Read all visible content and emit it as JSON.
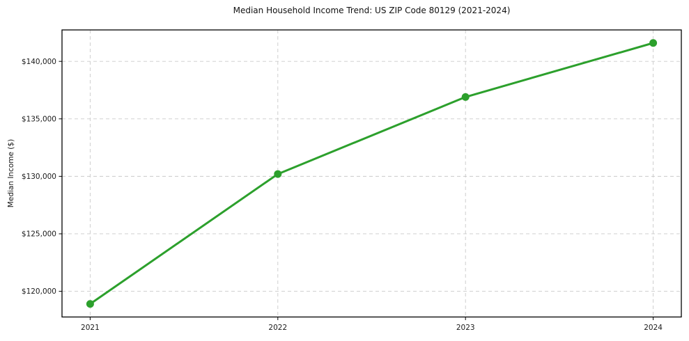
{
  "chart": {
    "title": "Median Household Income Trend: US ZIP Code 80129 (2021-2024)",
    "y_axis_label": "Median Income ($)"
  },
  "chart_data": {
    "type": "line",
    "title": "Median Household Income Trend: US ZIP Code 80129 (2021-2024)",
    "xlabel": "",
    "ylabel": "Median Income ($)",
    "x": [
      2021,
      2022,
      2023,
      2024
    ],
    "x_tick_labels": [
      "2021",
      "2022",
      "2023",
      "2024"
    ],
    "series": [
      {
        "name": "Median household income",
        "values": [
          118900,
          130200,
          136900,
          141600
        ]
      }
    ],
    "yticks": [
      120000,
      125000,
      130000,
      135000,
      140000
    ],
    "ytick_labels": [
      "$120,000",
      "$125,000",
      "$130,000",
      "$135,000",
      "$140,000"
    ],
    "xlim": [
      2020.85,
      2024.15
    ],
    "ylim": [
      117765,
      142735
    ],
    "grid": true,
    "grid_line_style": "dashed",
    "legend": "none",
    "colors": {
      "line": "#2ca02c",
      "marker": "#2ca02c",
      "grid": "#c9c9c9",
      "axis": "#000000",
      "background": "#ffffff"
    }
  }
}
